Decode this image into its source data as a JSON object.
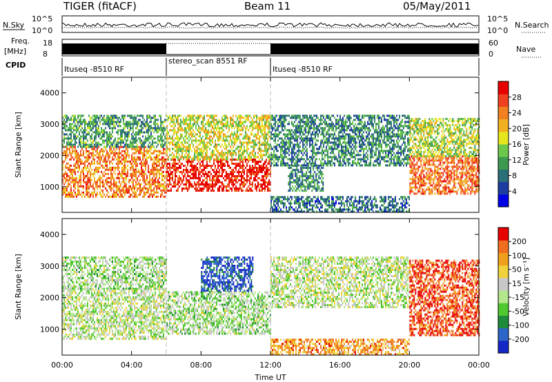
{
  "header": {
    "radar": "TIGER (fitACF)",
    "beam": "Beam 11",
    "date": "05/May/2011"
  },
  "top_panels": {
    "nsky_label": "N.Sky",
    "nsearch_label": "N.Search",
    "noise_ticks": [
      "10^5",
      "10^0"
    ],
    "freq_label": "Freq.",
    "freq_unit": "[MHz]",
    "freq_ticks": [
      "18",
      "8"
    ],
    "nave_label": "Nave",
    "nave_ticks": [
      "60",
      "0"
    ],
    "cpid_label": "CPID",
    "cpid_segments": [
      {
        "name": "Ituseq -8510 RF",
        "start_h": 0,
        "end_h": 6
      },
      {
        "name": "stereo_scan 8551 RF",
        "start_h": 6,
        "end_h": 12
      },
      {
        "name": "Ituseq -8510 RF",
        "start_h": 12,
        "end_h": 24
      }
    ]
  },
  "chart_data": [
    {
      "type": "heatmap",
      "panel": "power",
      "ylabel": "Slant Range [km]",
      "xlabel": "",
      "x_ticks": [
        "00:00",
        "04:00",
        "08:00",
        "12:00",
        "16:00",
        "20:00",
        "00:00"
      ],
      "y_ticks": [
        "1000",
        "2000",
        "3000",
        "4000"
      ],
      "xlim_h": [
        0,
        24
      ],
      "ylim_km": [
        180,
        4500
      ],
      "colorbar": {
        "label": "Power [dB]",
        "ticks": [
          "4",
          "8",
          "12",
          "16",
          "20",
          "24",
          "28"
        ],
        "range": [
          0,
          30
        ],
        "colors": [
          "#0000e6",
          "#1c3ca0",
          "#2a6e78",
          "#3c9a50",
          "#6cc84a",
          "#e6e61e",
          "#f0b020",
          "#f08020",
          "#f04020",
          "#e60000"
        ]
      },
      "regions": [
        {
          "t0": 0,
          "t1": 6,
          "r0": 700,
          "r1": 2300,
          "level": 0.75
        },
        {
          "t0": 0,
          "t1": 6,
          "r0": 2300,
          "r1": 3300,
          "level": 0.35
        },
        {
          "t0": 6,
          "t1": 12,
          "r0": 850,
          "r1": 1900,
          "level": 0.92
        },
        {
          "t0": 6,
          "t1": 12,
          "r0": 1900,
          "r1": 3300,
          "level": 0.55
        },
        {
          "t0": 12,
          "t1": 20,
          "r0": 1700,
          "r1": 3300,
          "level": 0.3
        },
        {
          "t0": 13,
          "t1": 15,
          "r0": 900,
          "r1": 1700,
          "level": 0.3
        },
        {
          "t0": 12,
          "t1": 20,
          "r0": 180,
          "r1": 700,
          "level": 0.25
        },
        {
          "t0": 20,
          "t1": 24,
          "r0": 800,
          "r1": 2000,
          "level": 0.78
        },
        {
          "t0": 20,
          "t1": 24,
          "r0": 2000,
          "r1": 3200,
          "level": 0.5
        }
      ]
    },
    {
      "type": "heatmap",
      "panel": "velocity",
      "ylabel": "Slant Range [km]",
      "xlabel": "Time UT",
      "x_ticks": [
        "00:00",
        "04:00",
        "08:00",
        "12:00",
        "16:00",
        "20:00",
        "00:00"
      ],
      "y_ticks": [
        "1000",
        "2000",
        "3000",
        "4000"
      ],
      "xlim_h": [
        0,
        24
      ],
      "ylim_km": [
        180,
        4500
      ],
      "colorbar": {
        "label": "Velocity [m s⁻¹]",
        "ticks": [
          "200",
          "100",
          "50",
          "15",
          "-15",
          "-50",
          "-100",
          "-200"
        ],
        "colors": [
          "#1428c8",
          "#2c64c8",
          "#1e8c3c",
          "#50c830",
          "#b4e68c",
          "#c8c8c8",
          "#f0d23c",
          "#f0a01e",
          "#f06e1e",
          "#e60000"
        ]
      },
      "regions": [
        {
          "t0": 0,
          "t1": 6,
          "r0": 700,
          "r1": 2300,
          "level": 0.5
        },
        {
          "t0": 0,
          "t1": 6,
          "r0": 2300,
          "r1": 3300,
          "level": 0.45
        },
        {
          "t0": 6,
          "t1": 12,
          "r0": 850,
          "r1": 2200,
          "level": 0.45
        },
        {
          "t0": 8,
          "t1": 11,
          "r0": 2200,
          "r1": 3300,
          "level": 0.1
        },
        {
          "t0": 12,
          "t1": 20,
          "r0": 1700,
          "r1": 3300,
          "level": 0.5
        },
        {
          "t0": 12,
          "t1": 20,
          "r0": 180,
          "r1": 700,
          "level": 0.75
        },
        {
          "t0": 20,
          "t1": 24,
          "r0": 800,
          "r1": 3200,
          "level": 0.9
        }
      ]
    }
  ]
}
